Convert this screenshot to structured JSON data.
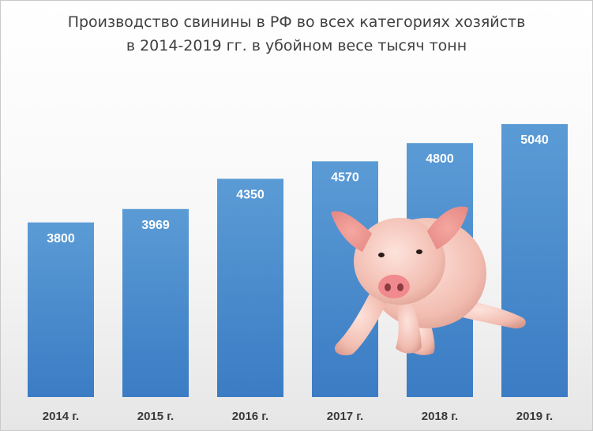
{
  "chart_data": {
    "type": "bar",
    "title_line1": "Производство свинины в РФ во всех категориях хозяйств",
    "title_line2": "в 2014-2019 гг. в убойном весе тысяч тонн",
    "categories": [
      "2014 г.",
      "2015 г.",
      "2016 г.",
      "2017 г.",
      "2018 г.",
      "2019 г."
    ],
    "values": [
      3800,
      3969,
      4350,
      4570,
      4800,
      5040
    ],
    "data_labels": [
      "3800",
      "3969",
      "4350",
      "4570",
      "4800",
      "5040"
    ],
    "ylim": [
      1600,
      5200
    ],
    "grid": false,
    "legend": "none",
    "bar_color_top": "#5b9bd5",
    "bar_color_bottom": "#3b7cc4",
    "decoration": "piglet-illustration"
  }
}
